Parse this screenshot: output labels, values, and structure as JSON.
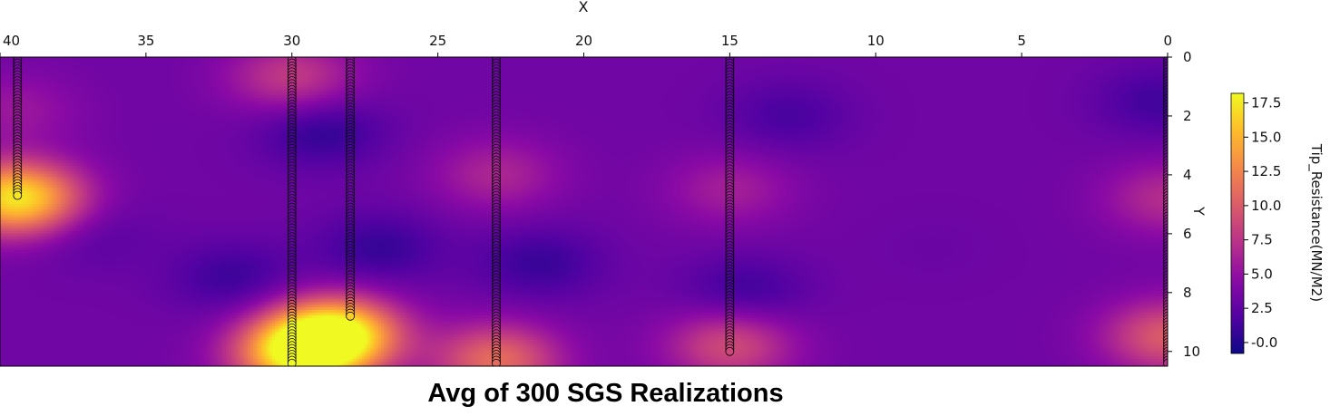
{
  "caption": "Avg of 300 SGS Realizations",
  "chart_data": {
    "type": "heatmap",
    "xlabel": "X",
    "ylabel": "Y",
    "colorbar_label": "Tip_Resistance(MN/M2)",
    "colormap": "plasma",
    "xlim": [
      40,
      0
    ],
    "ylim": [
      10.5,
      0
    ],
    "x_ticks": [
      40,
      35,
      30,
      25,
      20,
      15,
      10,
      5,
      0
    ],
    "y_ticks": [
      0,
      2,
      4,
      6,
      8,
      10
    ],
    "color_range": [
      -0.8,
      18.2
    ],
    "colorbar_ticks": [
      "-0.0",
      "2.5",
      "5.0",
      "7.5",
      "10.0",
      "12.5",
      "15.0",
      "17.5"
    ],
    "colorbar_tick_values": [
      0,
      2.5,
      5,
      7.5,
      10,
      12.5,
      15,
      17.5
    ],
    "background_value": 3.3,
    "field_features": [
      {
        "x": 39.4,
        "y": 4.8,
        "value": 17.5
      },
      {
        "x": 28.5,
        "y": 9.4,
        "value": 18
      },
      {
        "x": 29.8,
        "y": 10.1,
        "value": 16
      },
      {
        "x": 23.0,
        "y": 10.3,
        "value": 11
      },
      {
        "x": 23.0,
        "y": 4.0,
        "value": 6.5
      },
      {
        "x": 15.0,
        "y": 9.8,
        "value": 9
      },
      {
        "x": 15.0,
        "y": 4.5,
        "value": 6
      },
      {
        "x": 30.0,
        "y": 0.7,
        "value": 8
      },
      {
        "x": 39.5,
        "y": 1.8,
        "value": 5.5
      },
      {
        "x": 0.0,
        "y": 9.5,
        "value": 10
      },
      {
        "x": 0.0,
        "y": 4.8,
        "value": 7
      },
      {
        "x": 29.0,
        "y": 2.5,
        "value": 0.5
      },
      {
        "x": 27.0,
        "y": 6.5,
        "value": 0.8
      },
      {
        "x": 32.0,
        "y": 7.5,
        "value": 1.0
      },
      {
        "x": 21.5,
        "y": 7.0,
        "value": 0.9
      },
      {
        "x": 14.5,
        "y": 8.0,
        "value": 1.0
      },
      {
        "x": 13.0,
        "y": 2.0,
        "value": 1.5
      },
      {
        "x": 0.3,
        "y": 1.5,
        "value": 1.2
      },
      {
        "x": 37.0,
        "y": 6.0,
        "value": 2.0
      },
      {
        "x": 8.0,
        "y": 6.5,
        "value": 3.0
      }
    ],
    "wells": [
      {
        "x": 39.4,
        "y_top": 0.1,
        "y_bottom": 4.7
      },
      {
        "x": 30.0,
        "y_top": 0.1,
        "y_bottom": 10.4
      },
      {
        "x": 28.0,
        "y_top": 0.1,
        "y_bottom": 8.8
      },
      {
        "x": 23.0,
        "y_top": 0.1,
        "y_bottom": 10.4
      },
      {
        "x": 15.0,
        "y_top": 0.1,
        "y_bottom": 10.0
      },
      {
        "x": 0.0,
        "y_top": 0.1,
        "y_bottom": 10.4
      }
    ],
    "well_marker_spacing": 0.1
  }
}
